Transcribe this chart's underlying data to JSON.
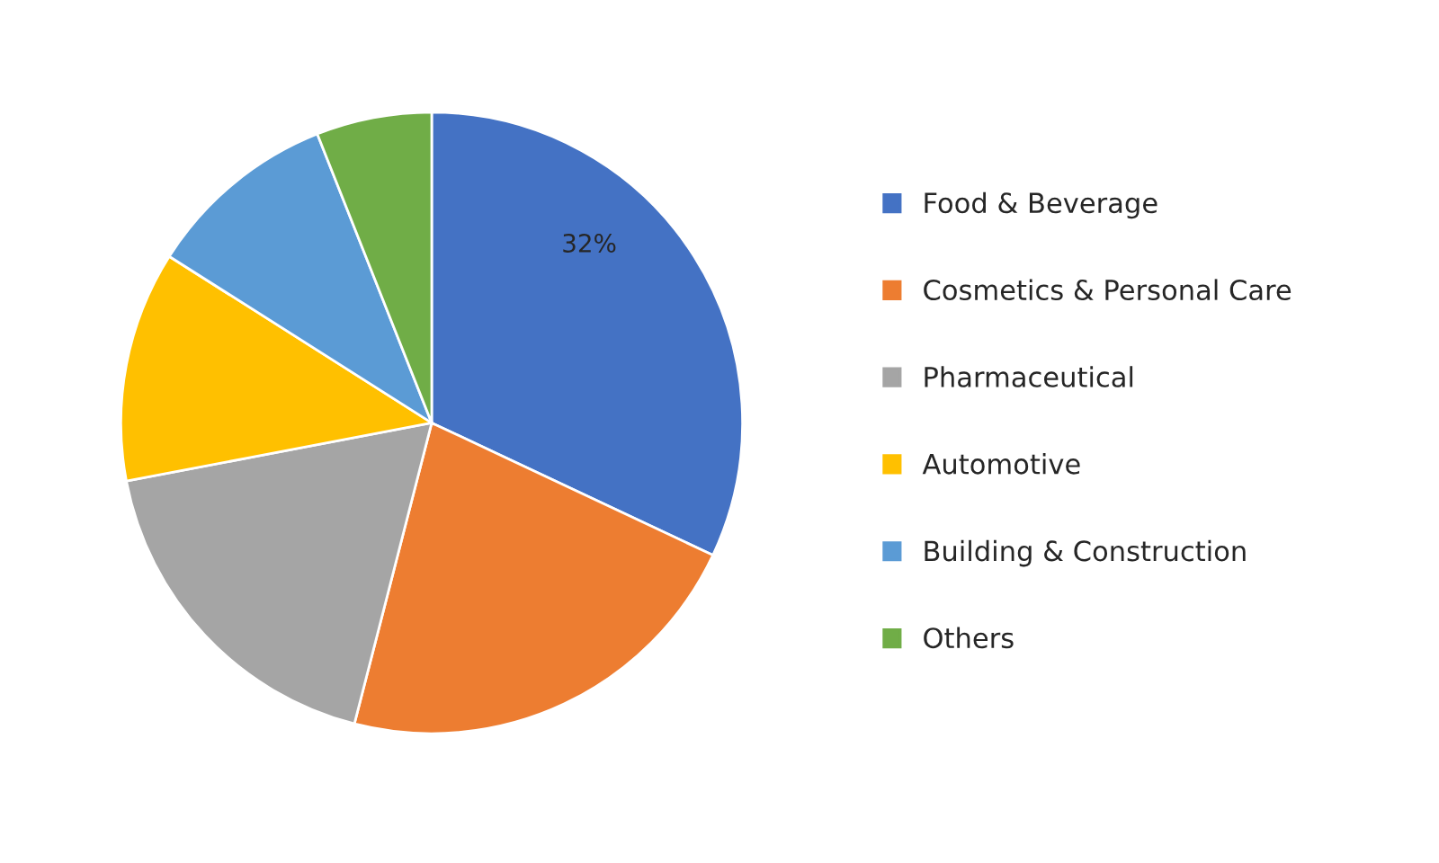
{
  "chart_data": {
    "type": "pie",
    "categories": [
      "Food & Beverage",
      "Cosmetics & Personal Care",
      "Pharmaceutical",
      "Automotive",
      "Building & Construction",
      "Others"
    ],
    "values": [
      32,
      22,
      18,
      12,
      10,
      6
    ],
    "colors": [
      "#4472c4",
      "#ed7d31",
      "#a5a5a5",
      "#ffc000",
      "#5b9bd5",
      "#70ad47"
    ],
    "value_labels": [
      "32%",
      null,
      null,
      null,
      null,
      null
    ],
    "legend": "right"
  }
}
